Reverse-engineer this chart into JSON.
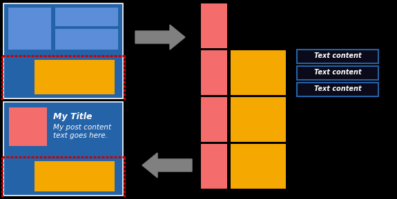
{
  "bg_color": "#000000",
  "blue_dark": "#2563a8",
  "blue_light": "#5b8dd9",
  "orange": "#f5a800",
  "pink": "#f56c6c",
  "red_dashed": "#cc0000",
  "arrow_color": "#808080",
  "text_color": "#ffffff",
  "border_color": "#2563a8",
  "title": "My Title",
  "body": "My post content\ntext goes here.",
  "text_content": "Text content",
  "figsize": [
    5.75,
    2.89
  ],
  "dpi": 100
}
